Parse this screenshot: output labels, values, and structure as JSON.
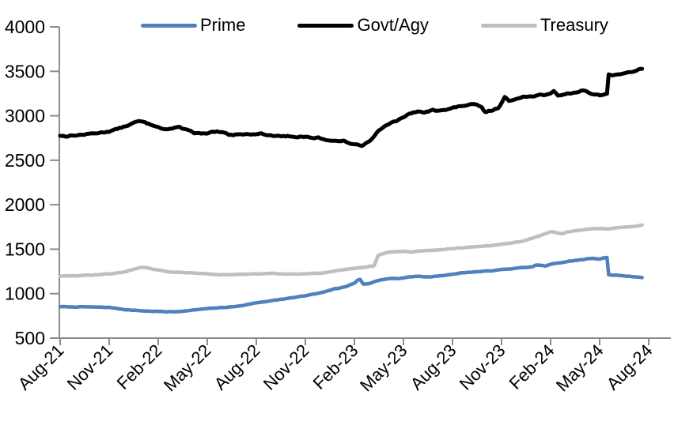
{
  "page": {
    "background": "#ffffff"
  },
  "chart_data": {
    "type": "line",
    "title": "",
    "xlabel": "",
    "ylabel": "",
    "x_unit": "months since Aug-2021",
    "x_range": [
      0,
      36
    ],
    "ylim": [
      500,
      4000
    ],
    "y_tick_step": 500,
    "y_tick_labels": [
      "500",
      "1000",
      "1500",
      "2000",
      "2500",
      "3000",
      "3500",
      "4000"
    ],
    "x_tick_labels": [
      "Aug-21",
      "Nov-21",
      "Feb-22",
      "May-22",
      "Aug-22",
      "Nov-22",
      "Feb-23",
      "May-23",
      "Aug-23",
      "Nov-23",
      "Feb-24",
      "May-24",
      "Aug-24"
    ],
    "x_tick_positions_months": [
      0,
      3,
      6,
      9,
      12,
      15,
      18,
      21,
      24,
      27,
      30,
      33,
      36
    ],
    "grid": false,
    "legend_position": "top",
    "axis_color": "#8C8C8C",
    "text_color": "#000000",
    "series": [
      {
        "name": "Prime",
        "color": "#4F81BD",
        "points": [
          [
            0,
            855
          ],
          [
            0.5,
            851
          ],
          [
            1,
            850
          ],
          [
            1.5,
            852
          ],
          [
            2,
            849
          ],
          [
            2.5,
            848
          ],
          [
            3,
            845
          ],
          [
            3.5,
            833
          ],
          [
            4,
            820
          ],
          [
            4.5,
            813
          ],
          [
            5,
            807
          ],
          [
            5.5,
            803
          ],
          [
            6,
            800
          ],
          [
            6.5,
            797
          ],
          [
            7,
            797
          ],
          [
            7.5,
            803
          ],
          [
            8,
            812
          ],
          [
            8.5,
            822
          ],
          [
            9,
            831
          ],
          [
            9.5,
            838
          ],
          [
            10,
            845
          ],
          [
            10.5,
            852
          ],
          [
            11,
            861
          ],
          [
            11.3,
            872
          ],
          [
            11.6,
            884
          ],
          [
            12,
            897
          ],
          [
            12.5,
            910
          ],
          [
            13,
            922
          ],
          [
            13.5,
            935
          ],
          [
            14,
            948
          ],
          [
            14.5,
            962
          ],
          [
            15,
            976
          ],
          [
            15.5,
            992
          ],
          [
            16,
            1012
          ],
          [
            16.5,
            1035
          ],
          [
            16.8,
            1058
          ],
          [
            17,
            1062
          ],
          [
            17.5,
            1082
          ],
          [
            18,
            1118
          ],
          [
            18.2,
            1152
          ],
          [
            18.35,
            1160
          ],
          [
            18.55,
            1108
          ],
          [
            18.8,
            1112
          ],
          [
            19,
            1118
          ],
          [
            19.3,
            1140
          ],
          [
            19.6,
            1155
          ],
          [
            20,
            1166
          ],
          [
            20.3,
            1173
          ],
          [
            20.6,
            1170
          ],
          [
            21,
            1177
          ],
          [
            21.4,
            1188
          ],
          [
            21.7,
            1193
          ],
          [
            22,
            1196
          ],
          [
            22.3,
            1190
          ],
          [
            22.6,
            1186
          ],
          [
            23,
            1196
          ],
          [
            23.5,
            1205
          ],
          [
            24,
            1220
          ],
          [
            24.5,
            1232
          ],
          [
            25,
            1240
          ],
          [
            25.5,
            1247
          ],
          [
            26,
            1252
          ],
          [
            26.5,
            1260
          ],
          [
            27,
            1270
          ],
          [
            27.5,
            1278
          ],
          [
            28,
            1288
          ],
          [
            28.5,
            1295
          ],
          [
            28.9,
            1300
          ],
          [
            29.1,
            1320
          ],
          [
            29.4,
            1318
          ],
          [
            29.7,
            1310
          ],
          [
            30,
            1330
          ],
          [
            30.5,
            1345
          ],
          [
            31,
            1360
          ],
          [
            31.5,
            1373
          ],
          [
            32,
            1383
          ],
          [
            32.3,
            1392
          ],
          [
            32.6,
            1398
          ],
          [
            33,
            1390
          ],
          [
            33.2,
            1402
          ],
          [
            33.45,
            1406
          ],
          [
            33.55,
            1210
          ],
          [
            33.8,
            1207
          ],
          [
            34,
            1208
          ],
          [
            34.3,
            1203
          ],
          [
            34.6,
            1198
          ],
          [
            35,
            1193
          ],
          [
            35.3,
            1188
          ],
          [
            35.6,
            1180
          ]
        ]
      },
      {
        "name": "Govt/Agy",
        "color": "#000000",
        "points": [
          [
            0,
            2778
          ],
          [
            0.3,
            2770
          ],
          [
            0.6,
            2776
          ],
          [
            1,
            2782
          ],
          [
            1.5,
            2790
          ],
          [
            2,
            2800
          ],
          [
            2.5,
            2812
          ],
          [
            3,
            2826
          ],
          [
            3.5,
            2852
          ],
          [
            4,
            2882
          ],
          [
            4.4,
            2912
          ],
          [
            4.8,
            2938
          ],
          [
            5.1,
            2928
          ],
          [
            5.4,
            2908
          ],
          [
            5.7,
            2892
          ],
          [
            6,
            2882
          ],
          [
            6.3,
            2855
          ],
          [
            6.6,
            2850
          ],
          [
            7,
            2862
          ],
          [
            7.3,
            2868
          ],
          [
            7.6,
            2848
          ],
          [
            8,
            2836
          ],
          [
            8.2,
            2802
          ],
          [
            8.5,
            2800
          ],
          [
            9,
            2797
          ],
          [
            9.3,
            2812
          ],
          [
            9.6,
            2818
          ],
          [
            10,
            2806
          ],
          [
            10.3,
            2790
          ],
          [
            10.6,
            2786
          ],
          [
            11,
            2800
          ],
          [
            11.4,
            2795
          ],
          [
            11.8,
            2788
          ],
          [
            12,
            2797
          ],
          [
            12.3,
            2802
          ],
          [
            12.6,
            2786
          ],
          [
            13,
            2776
          ],
          [
            13.4,
            2781
          ],
          [
            13.8,
            2768
          ],
          [
            14,
            2772
          ],
          [
            14.4,
            2756
          ],
          [
            14.8,
            2766
          ],
          [
            15,
            2762
          ],
          [
            15.4,
            2746
          ],
          [
            15.8,
            2752
          ],
          [
            16,
            2742
          ],
          [
            16.4,
            2728
          ],
          [
            16.8,
            2722
          ],
          [
            17,
            2712
          ],
          [
            17.3,
            2718
          ],
          [
            17.6,
            2698
          ],
          [
            18,
            2678
          ],
          [
            18.2,
            2668
          ],
          [
            18.45,
            2662
          ],
          [
            18.7,
            2698
          ],
          [
            18.9,
            2712
          ],
          [
            19.1,
            2752
          ],
          [
            19.3,
            2802
          ],
          [
            19.6,
            2852
          ],
          [
            20,
            2902
          ],
          [
            20.3,
            2922
          ],
          [
            20.6,
            2938
          ],
          [
            21,
            2986
          ],
          [
            21.3,
            3012
          ],
          [
            21.6,
            3036
          ],
          [
            22,
            3052
          ],
          [
            22.2,
            3032
          ],
          [
            22.5,
            3046
          ],
          [
            22.8,
            3062
          ],
          [
            23,
            3058
          ],
          [
            23.3,
            3072
          ],
          [
            23.6,
            3066
          ],
          [
            24,
            3088
          ],
          [
            24.3,
            3098
          ],
          [
            24.6,
            3112
          ],
          [
            25,
            3122
          ],
          [
            25.3,
            3128
          ],
          [
            25.6,
            3108
          ],
          [
            25.8,
            3092
          ],
          [
            26,
            3038
          ],
          [
            26.2,
            3052
          ],
          [
            26.5,
            3066
          ],
          [
            26.8,
            3092
          ],
          [
            27,
            3148
          ],
          [
            27.2,
            3208
          ],
          [
            27.45,
            3162
          ],
          [
            27.7,
            3178
          ],
          [
            28,
            3202
          ],
          [
            28.3,
            3218
          ],
          [
            28.6,
            3212
          ],
          [
            29,
            3224
          ],
          [
            29.3,
            3232
          ],
          [
            29.6,
            3226
          ],
          [
            30,
            3256
          ],
          [
            30.2,
            3282
          ],
          [
            30.45,
            3222
          ],
          [
            30.7,
            3238
          ],
          [
            31,
            3248
          ],
          [
            31.3,
            3256
          ],
          [
            31.6,
            3266
          ],
          [
            32,
            3292
          ],
          [
            32.2,
            3272
          ],
          [
            32.5,
            3248
          ],
          [
            32.8,
            3238
          ],
          [
            33,
            3230
          ],
          [
            33.2,
            3242
          ],
          [
            33.45,
            3248
          ],
          [
            33.55,
            3462
          ],
          [
            33.8,
            3458
          ],
          [
            34,
            3468
          ],
          [
            34.3,
            3462
          ],
          [
            34.6,
            3478
          ],
          [
            35,
            3498
          ],
          [
            35.3,
            3512
          ],
          [
            35.6,
            3528
          ]
        ]
      },
      {
        "name": "Treasury",
        "color": "#BFBFBF",
        "points": [
          [
            0,
            1196
          ],
          [
            0.5,
            1198
          ],
          [
            1,
            1201
          ],
          [
            1.5,
            1205
          ],
          [
            2,
            1210
          ],
          [
            2.5,
            1216
          ],
          [
            3,
            1222
          ],
          [
            3.5,
            1232
          ],
          [
            4,
            1247
          ],
          [
            4.4,
            1268
          ],
          [
            4.8,
            1292
          ],
          [
            5,
            1296
          ],
          [
            5.3,
            1288
          ],
          [
            6,
            1262
          ],
          [
            6.5,
            1250
          ],
          [
            7,
            1241
          ],
          [
            7.5,
            1237
          ],
          [
            8,
            1234
          ],
          [
            8.5,
            1228
          ],
          [
            9,
            1222
          ],
          [
            9.5,
            1216
          ],
          [
            10,
            1212
          ],
          [
            10.5,
            1213
          ],
          [
            11,
            1216
          ],
          [
            11.5,
            1219
          ],
          [
            12,
            1222
          ],
          [
            12.5,
            1225
          ],
          [
            13,
            1227
          ],
          [
            13.5,
            1223
          ],
          [
            14,
            1220
          ],
          [
            14.5,
            1223
          ],
          [
            15,
            1226
          ],
          [
            15.5,
            1229
          ],
          [
            16,
            1233
          ],
          [
            16.5,
            1243
          ],
          [
            17,
            1257
          ],
          [
            17.5,
            1270
          ],
          [
            18,
            1283
          ],
          [
            18.4,
            1292
          ],
          [
            18.7,
            1297
          ],
          [
            19,
            1307
          ],
          [
            19.2,
            1312
          ],
          [
            19.45,
            1428
          ],
          [
            19.7,
            1448
          ],
          [
            20,
            1461
          ],
          [
            20.3,
            1469
          ],
          [
            20.6,
            1472
          ],
          [
            21,
            1473
          ],
          [
            21.5,
            1469
          ],
          [
            22,
            1479
          ],
          [
            22.5,
            1486
          ],
          [
            23,
            1492
          ],
          [
            23.5,
            1498
          ],
          [
            24,
            1506
          ],
          [
            24.5,
            1514
          ],
          [
            25,
            1522
          ],
          [
            25.5,
            1529
          ],
          [
            26,
            1536
          ],
          [
            26.5,
            1544
          ],
          [
            27,
            1553
          ],
          [
            27.5,
            1566
          ],
          [
            28,
            1582
          ],
          [
            28.5,
            1602
          ],
          [
            29,
            1628
          ],
          [
            29.4,
            1655
          ],
          [
            29.8,
            1680
          ],
          [
            30.1,
            1697
          ],
          [
            30.4,
            1685
          ],
          [
            30.7,
            1672
          ],
          [
            31,
            1692
          ],
          [
            31.3,
            1702
          ],
          [
            31.6,
            1707
          ],
          [
            32,
            1716
          ],
          [
            32.5,
            1727
          ],
          [
            33,
            1735
          ],
          [
            33.3,
            1730
          ],
          [
            33.6,
            1727
          ],
          [
            34,
            1737
          ],
          [
            34.5,
            1747
          ],
          [
            35,
            1756
          ],
          [
            35.3,
            1763
          ],
          [
            35.6,
            1772
          ]
        ]
      }
    ]
  }
}
